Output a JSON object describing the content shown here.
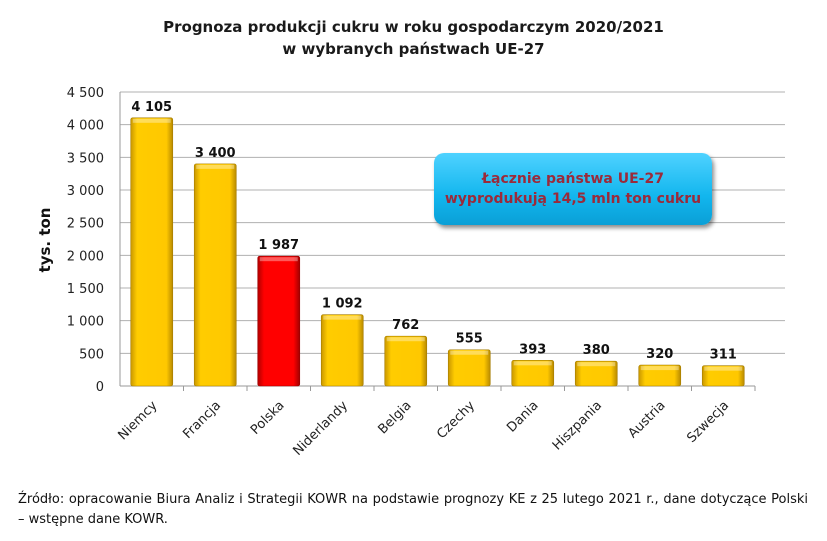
{
  "chart_data": {
    "type": "bar",
    "title": "Prognoza produkcji cukru w roku gospodarczym 2020/2021",
    "subtitle": "w wybranych państwach UE-27",
    "ylabel": "tys. ton",
    "xlabel": "",
    "ylim": [
      0,
      4500
    ],
    "yticks": [
      0,
      500,
      1000,
      1500,
      2000,
      2500,
      3000,
      3500,
      4000,
      4500
    ],
    "ytick_labels": [
      "0",
      "500",
      "1 000",
      "1 500",
      "2 000",
      "2 500",
      "3 000",
      "3 500",
      "4 000",
      "4 500"
    ],
    "grid": true,
    "categories": [
      "Niemcy",
      "Francja",
      "Polska",
      "Niderlandy",
      "Belgia",
      "Czechy",
      "Dania",
      "Hiszpania",
      "Austria",
      "Szwecja"
    ],
    "values": [
      4105,
      3400,
      1987,
      1092,
      762,
      555,
      393,
      380,
      320,
      311
    ],
    "data_labels": [
      "4 105",
      "3 400",
      "1 987",
      "1 092",
      "762",
      "555",
      "393",
      "380",
      "320",
      "311"
    ],
    "colors": {
      "default": "#ffc400",
      "highlight": "#ff0000"
    },
    "highlight_category": "Polska",
    "annotation": [
      "Łącznie państwa UE-27",
      "wyprodukują 14,5 mln ton cukru"
    ]
  },
  "source": "Źródło: opracowanie Biura Analiz i Strategii KOWR na podstawie prognozy KE z 25 lutego 2021 r., dane dotyczące Polski – wstępne dane KOWR."
}
